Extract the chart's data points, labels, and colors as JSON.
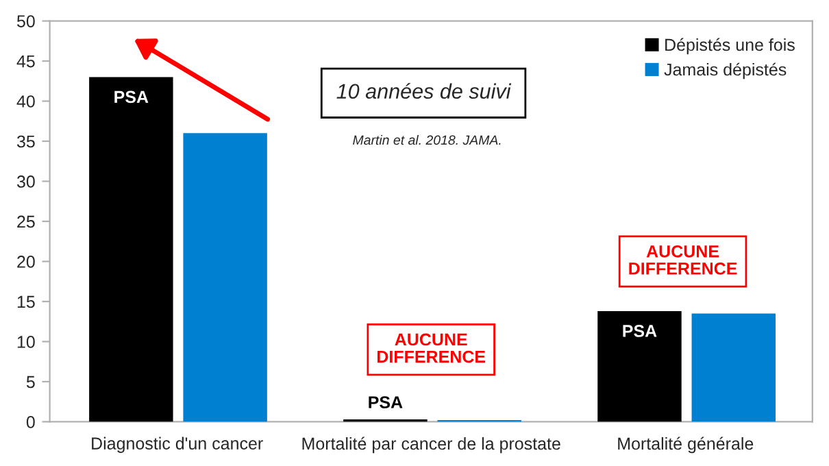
{
  "chart_data": {
    "type": "bar",
    "categories": [
      "Diagnostic d'un cancer",
      "Mortalité par cancer de la prostate",
      "Mortalité générale"
    ],
    "series": [
      {
        "name": "Dépistés une fois",
        "color": "#000000",
        "values": [
          43,
          0.3,
          13.8
        ]
      },
      {
        "name": "Jamais dépistés",
        "color": "#0080d0",
        "values": [
          36,
          0.2,
          13.5
        ]
      }
    ],
    "ylim": [
      0,
      50
    ],
    "yticks": [
      0,
      5,
      10,
      15,
      20,
      25,
      30,
      35,
      40,
      45,
      50
    ],
    "grid": false,
    "legend": "top right",
    "annotations": [
      {
        "text": "PSA",
        "x": "Diagnostic d'un cancer",
        "y": 43
      },
      {
        "text": "PSA",
        "x": "Mortalité par cancer de la prostate",
        "y": 0.3
      },
      {
        "text": "PSA",
        "x": "Mortalité générale",
        "y": 13.8
      },
      "10 années de suivi",
      "Martin et al. 2018. JAMA.",
      "AUCUNE\nDIFFERENCE",
      "AUCUNE\nDIFFERENCE"
    ]
  }
}
